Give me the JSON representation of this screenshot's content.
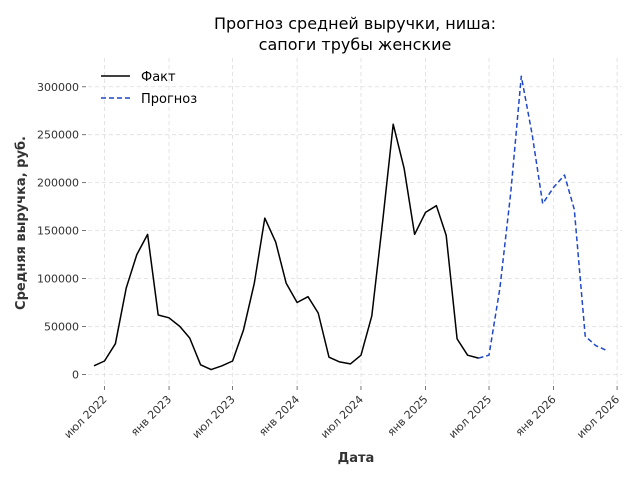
{
  "chart_data": {
    "type": "line",
    "title_lines": [
      "Прогноз средней выручки, ниша:",
      "сапоги трубы женские"
    ],
    "xlabel": "Дата",
    "ylabel": "Средняя выручка, руб.",
    "x_range": [
      "2022-05-15",
      "2026-07-15"
    ],
    "ylim": [
      -10000,
      330000
    ],
    "y_ticks": [
      0,
      50000,
      100000,
      150000,
      200000,
      250000,
      300000
    ],
    "x_ticks": [
      {
        "date": "2022-07-01",
        "label": "июл 2022"
      },
      {
        "date": "2023-01-01",
        "label": "янв 2023"
      },
      {
        "date": "2023-07-01",
        "label": "июл 2023"
      },
      {
        "date": "2024-01-01",
        "label": "янв 2024"
      },
      {
        "date": "2024-07-01",
        "label": "июл 2024"
      },
      {
        "date": "2025-01-01",
        "label": "янв 2025"
      },
      {
        "date": "2025-07-01",
        "label": "июл 2025"
      },
      {
        "date": "2026-01-01",
        "label": "янв 2026"
      },
      {
        "date": "2026-07-01",
        "label": "июл 2026"
      }
    ],
    "grid": true,
    "legend_position": "top-left",
    "series": [
      {
        "name": "Факт",
        "color": "#000000",
        "style": "solid",
        "points": [
          [
            "2022-06-01",
            9000
          ],
          [
            "2022-07-01",
            14000
          ],
          [
            "2022-08-01",
            32000
          ],
          [
            "2022-09-01",
            90000
          ],
          [
            "2022-10-01",
            125000
          ],
          [
            "2022-11-01",
            146000
          ],
          [
            "2022-12-01",
            62000
          ],
          [
            "2023-01-01",
            59000
          ],
          [
            "2023-02-01",
            50000
          ],
          [
            "2023-03-01",
            38000
          ],
          [
            "2023-04-01",
            10000
          ],
          [
            "2023-05-01",
            5000
          ],
          [
            "2023-06-01",
            9000
          ],
          [
            "2023-07-01",
            14000
          ],
          [
            "2023-08-01",
            46000
          ],
          [
            "2023-09-01",
            95000
          ],
          [
            "2023-10-01",
            163000
          ],
          [
            "2023-11-01",
            138000
          ],
          [
            "2023-12-01",
            95000
          ],
          [
            "2024-01-01",
            75000
          ],
          [
            "2024-02-01",
            81000
          ],
          [
            "2024-03-01",
            64000
          ],
          [
            "2024-04-01",
            18000
          ],
          [
            "2024-05-01",
            13000
          ],
          [
            "2024-06-01",
            11000
          ],
          [
            "2024-07-01",
            20000
          ],
          [
            "2024-08-01",
            61000
          ],
          [
            "2024-09-01",
            160000
          ],
          [
            "2024-10-01",
            261000
          ],
          [
            "2024-11-01",
            215000
          ],
          [
            "2024-12-01",
            146000
          ],
          [
            "2025-01-01",
            169000
          ],
          [
            "2025-02-01",
            176000
          ],
          [
            "2025-03-01",
            145000
          ],
          [
            "2025-04-01",
            37000
          ],
          [
            "2025-05-01",
            20000
          ],
          [
            "2025-06-01",
            17000
          ]
        ]
      },
      {
        "name": "Прогноз",
        "color": "#1f47c9",
        "style": "dashed",
        "points": [
          [
            "2025-06-01",
            17000
          ],
          [
            "2025-07-01",
            20000
          ],
          [
            "2025-08-01",
            90000
          ],
          [
            "2025-09-01",
            190000
          ],
          [
            "2025-10-01",
            311000
          ],
          [
            "2025-11-01",
            250000
          ],
          [
            "2025-12-01",
            178000
          ],
          [
            "2026-01-01",
            195000
          ],
          [
            "2026-02-01",
            208000
          ],
          [
            "2026-03-01",
            172000
          ],
          [
            "2026-04-01",
            40000
          ],
          [
            "2026-05-01",
            30000
          ],
          [
            "2026-06-01",
            25000
          ]
        ]
      }
    ]
  }
}
